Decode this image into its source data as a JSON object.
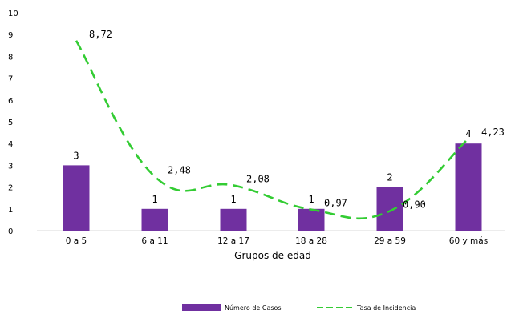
{
  "chart_data": {
    "type": "bar+line",
    "categories": [
      "0 a 5",
      "6 a 11",
      "12 a 17",
      "18 a 28",
      "29 a 59",
      "60 y más"
    ],
    "series": [
      {
        "name": "Número de Casos",
        "type": "bar",
        "color": "#7030A0",
        "values": [
          3,
          1,
          1,
          1,
          2,
          4
        ],
        "labels": [
          "3",
          "1",
          "1",
          "1",
          "2",
          "4"
        ]
      },
      {
        "name": "Tasa de Incidencia",
        "type": "line",
        "style": "dashed-smooth",
        "color": "#33CC33",
        "values": [
          8.72,
          2.48,
          2.08,
          0.97,
          0.9,
          4.23
        ],
        "labels": [
          "8,72",
          "2,48",
          "2,08",
          "0,97",
          "0,90",
          "4,23"
        ]
      }
    ],
    "xlabel": "Grupos de edad",
    "ylabel": "",
    "ylim": [
      0,
      10
    ],
    "yticks": [
      "0",
      "1",
      "2",
      "3",
      "4",
      "5",
      "6",
      "7",
      "8",
      "9",
      "10"
    ],
    "grid": false,
    "legend_position": "bottom-center"
  }
}
